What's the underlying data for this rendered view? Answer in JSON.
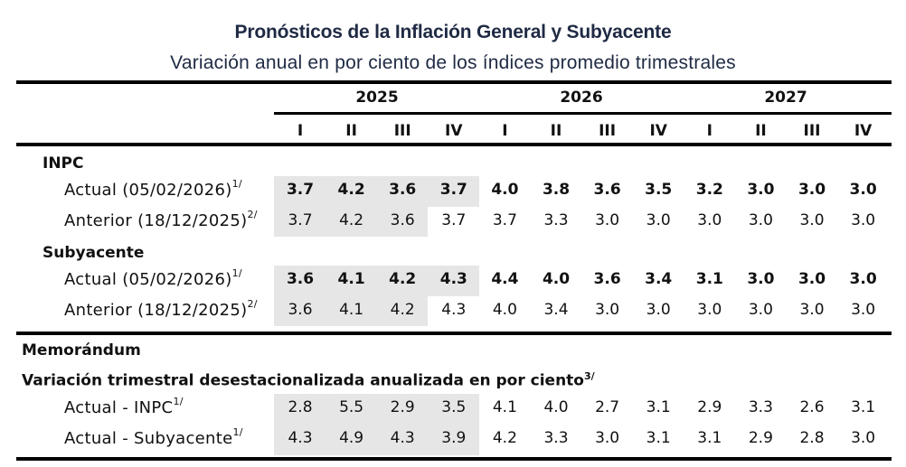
{
  "header": {
    "title": "Pronósticos de la Inflación General y Subyacente",
    "subtitle": "Variación anual en por ciento de los índices promedio trimestrales"
  },
  "columns": {
    "years": [
      "2025",
      "2026",
      "2027"
    ],
    "quarters": [
      "I",
      "II",
      "III",
      "IV",
      "I",
      "II",
      "III",
      "IV",
      "I",
      "II",
      "III",
      "IV"
    ]
  },
  "sections": {
    "inpc": {
      "label": "INPC",
      "rows": [
        {
          "label": "Actual (05/02/2026)",
          "footnote": "1/",
          "bold": true,
          "values": [
            "3.7",
            "4.2",
            "3.6",
            "3.7",
            "4.0",
            "3.8",
            "3.6",
            "3.5",
            "3.2",
            "3.0",
            "3.0",
            "3.0"
          ]
        },
        {
          "label": "Anterior (18/12/2025)",
          "footnote": "2/",
          "bold": false,
          "values": [
            "3.7",
            "4.2",
            "3.6",
            "3.7",
            "3.7",
            "3.3",
            "3.0",
            "3.0",
            "3.0",
            "3.0",
            "3.0",
            "3.0"
          ]
        }
      ]
    },
    "subyacente": {
      "label": "Subyacente",
      "rows": [
        {
          "label": "Actual (05/02/2026)",
          "footnote": "1/",
          "bold": true,
          "values": [
            "3.6",
            "4.1",
            "4.2",
            "4.3",
            "4.4",
            "4.0",
            "3.6",
            "3.4",
            "3.1",
            "3.0",
            "3.0",
            "3.0"
          ]
        },
        {
          "label": "Anterior (18/12/2025)",
          "footnote": "2/",
          "bold": false,
          "values": [
            "3.6",
            "4.1",
            "4.2",
            "4.3",
            "4.0",
            "3.4",
            "3.0",
            "3.0",
            "3.0",
            "3.0",
            "3.0",
            "3.0"
          ]
        }
      ]
    },
    "memorandum": {
      "label": "Memorándum",
      "sublabel": "Variación trimestral desestacionalizada anualizada en por ciento",
      "sublabel_footnote": "3/",
      "rows": [
        {
          "label": "Actual - INPC",
          "footnote": "1/",
          "bold": false,
          "values": [
            "2.8",
            "5.5",
            "2.9",
            "3.5",
            "4.1",
            "4.0",
            "2.7",
            "3.1",
            "2.9",
            "3.3",
            "2.6",
            "3.1"
          ]
        },
        {
          "label": "Actual - Subyacente",
          "footnote": "1/",
          "bold": false,
          "values": [
            "4.3",
            "4.9",
            "4.3",
            "3.9",
            "4.2",
            "3.3",
            "3.0",
            "3.1",
            "3.1",
            "2.9",
            "2.8",
            "3.0"
          ]
        }
      ]
    }
  },
  "colors": {
    "title": "#1f2a44",
    "shade": "#e6e6e6",
    "rule": "#000000"
  }
}
